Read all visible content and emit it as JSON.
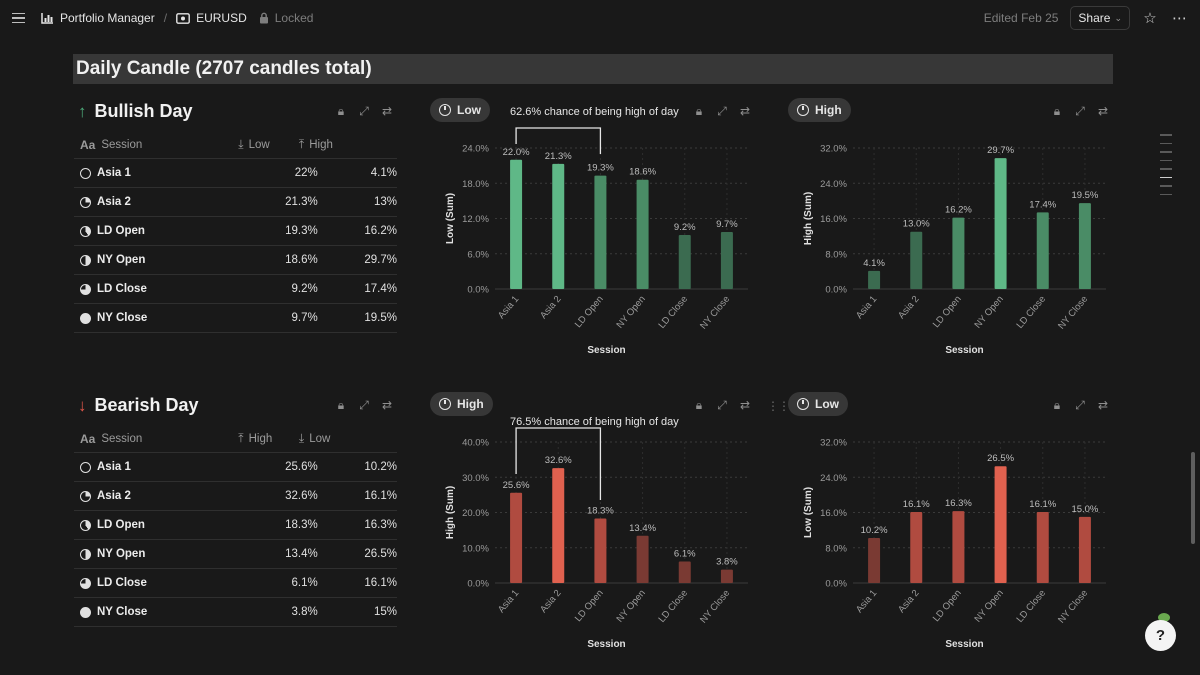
{
  "topbar": {
    "breadcrumb_1": "Portfolio Manager",
    "breadcrumb_sep": "/",
    "breadcrumb_2": "EURUSD",
    "locked": "Locked",
    "edited": "Edited Feb 25",
    "share": "Share"
  },
  "page_title": "Daily Candle (2707 candles total)",
  "bullish": {
    "title": "Bullish Day",
    "table": {
      "col_session": "Session",
      "col_a": "Low",
      "col_b": "High",
      "rows": [
        {
          "session": "Asia 1",
          "a": "22%",
          "b": "4.1%"
        },
        {
          "session": "Asia 2",
          "a": "21.3%",
          "b": "13%"
        },
        {
          "session": "LD Open",
          "a": "19.3%",
          "b": "16.2%"
        },
        {
          "session": "NY Open",
          "a": "18.6%",
          "b": "29.7%"
        },
        {
          "session": "LD Close",
          "a": "9.2%",
          "b": "17.4%"
        },
        {
          "session": "NY Close",
          "a": "9.7%",
          "b": "19.5%"
        }
      ]
    },
    "chart_left_pill": "Low",
    "chart_right_pill": "High",
    "annotation": "62.6% chance of being high of day"
  },
  "bearish": {
    "title": "Bearish Day",
    "table": {
      "col_session": "Session",
      "col_a": "High",
      "col_b": "Low",
      "rows": [
        {
          "session": "Asia 1",
          "a": "25.6%",
          "b": "10.2%"
        },
        {
          "session": "Asia 2",
          "a": "32.6%",
          "b": "16.1%"
        },
        {
          "session": "LD Open",
          "a": "18.3%",
          "b": "16.3%"
        },
        {
          "session": "NY Open",
          "a": "13.4%",
          "b": "26.5%"
        },
        {
          "session": "LD Close",
          "a": "6.1%",
          "b": "16.1%"
        },
        {
          "session": "NY Close",
          "a": "3.8%",
          "b": "15%"
        }
      ]
    },
    "chart_left_pill": "High",
    "chart_right_pill": "Low",
    "annotation": "76.5% chance of being high of day"
  },
  "colors": {
    "green_bright": "#5fb887",
    "green_mid": "#4a8c66",
    "green_dark": "#3b6b50",
    "red_bright": "#e0614f",
    "red_mid": "#b04b40",
    "red_dark": "#7a3a33"
  },
  "chart_data": [
    {
      "type": "bar",
      "id": "bull-low",
      "categories": [
        "Asia 1",
        "Asia 2",
        "LD Open",
        "NY Open",
        "LD Close",
        "NY Close"
      ],
      "values": [
        22.0,
        21.3,
        19.3,
        18.6,
        9.2,
        9.7
      ],
      "labels": [
        "22.0%",
        "21.3%",
        "19.3%",
        "18.6%",
        "9.2%",
        "9.7%"
      ],
      "xlabel": "Session",
      "ylabel": "Low (Sum)",
      "ylim": [
        0,
        24
      ],
      "yticks": [
        "0.0%",
        "6.0%",
        "12.0%",
        "18.0%",
        "24.0%"
      ],
      "grid": true,
      "palette": "green"
    },
    {
      "type": "bar",
      "id": "bull-high",
      "categories": [
        "Asia 1",
        "Asia 2",
        "LD Open",
        "NY Open",
        "LD Close",
        "NY Close"
      ],
      "values": [
        4.1,
        13.0,
        16.2,
        29.7,
        17.4,
        19.5
      ],
      "labels": [
        "4.1%",
        "13.0%",
        "16.2%",
        "29.7%",
        "17.4%",
        "19.5%"
      ],
      "xlabel": "Session",
      "ylabel": "High (Sum)",
      "ylim": [
        0,
        32
      ],
      "yticks": [
        "0.0%",
        "8.0%",
        "16.0%",
        "24.0%",
        "32.0%"
      ],
      "grid": true,
      "palette": "green"
    },
    {
      "type": "bar",
      "id": "bear-high",
      "categories": [
        "Asia 1",
        "Asia 2",
        "LD Open",
        "NY Open",
        "LD Close",
        "NY Close"
      ],
      "values": [
        25.6,
        32.6,
        18.3,
        13.4,
        6.1,
        3.8
      ],
      "labels": [
        "25.6%",
        "32.6%",
        "18.3%",
        "13.4%",
        "6.1%",
        "3.8%"
      ],
      "xlabel": "Session",
      "ylabel": "High (Sum)",
      "ylim": [
        0,
        40
      ],
      "yticks": [
        "0.0%",
        "10.0%",
        "20.0%",
        "30.0%",
        "40.0%"
      ],
      "grid": true,
      "palette": "red"
    },
    {
      "type": "bar",
      "id": "bear-low",
      "categories": [
        "Asia 1",
        "Asia 2",
        "LD Open",
        "NY Open",
        "LD Close",
        "NY Close"
      ],
      "values": [
        10.2,
        16.1,
        16.3,
        26.5,
        16.1,
        15.0
      ],
      "labels": [
        "10.2%",
        "16.1%",
        "16.3%",
        "26.5%",
        "16.1%",
        "15.0%"
      ],
      "xlabel": "Session",
      "ylabel": "Low (Sum)",
      "ylim": [
        0,
        32
      ],
      "yticks": [
        "0.0%",
        "8.0%",
        "16.0%",
        "24.0%",
        "32.0%"
      ],
      "grid": true,
      "palette": "red"
    }
  ]
}
